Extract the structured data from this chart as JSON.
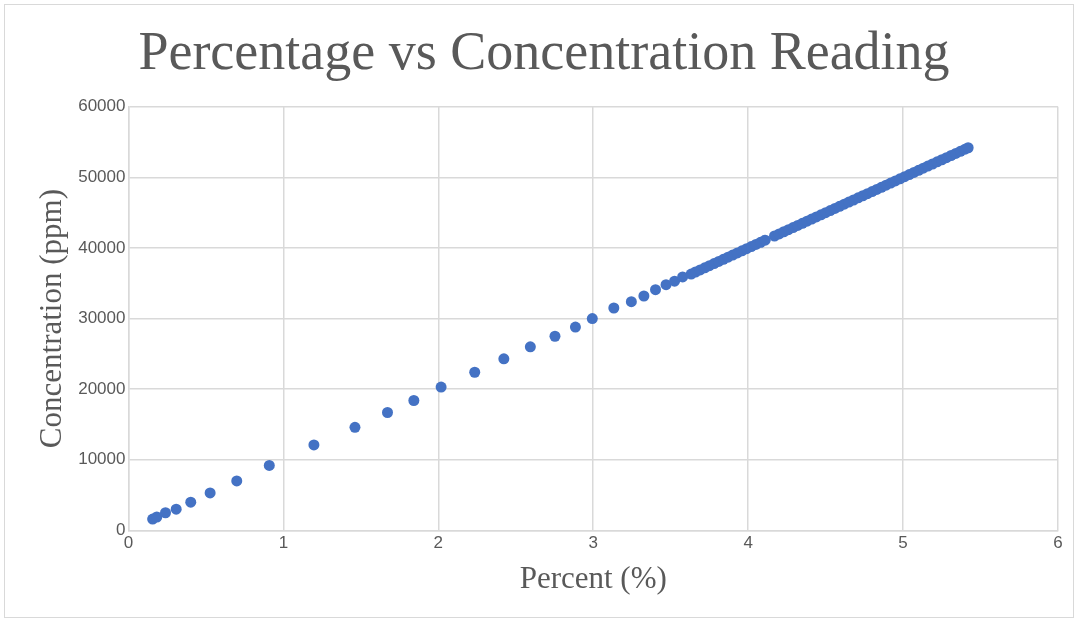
{
  "chart_data": {
    "type": "scatter",
    "title": "Percentage vs Concentration Reading",
    "xlabel": "Percent (%)",
    "ylabel": "Concentration (ppm)",
    "x": [
      0.156,
      0.183,
      0.239,
      0.308,
      0.402,
      0.527,
      0.699,
      0.909,
      1.197,
      1.462,
      1.672,
      1.842,
      2.018,
      2.235,
      2.423,
      2.594,
      2.753,
      2.885,
      2.994,
      3.133,
      3.246,
      3.327,
      3.402,
      3.47,
      3.525,
      3.577,
      3.632,
      3.66,
      3.69,
      3.72,
      3.75,
      3.78,
      3.81,
      3.84,
      3.87,
      3.9,
      3.93,
      3.96,
      3.99,
      4.02,
      4.05,
      4.08,
      4.11,
      4.17,
      4.2,
      4.23,
      4.26,
      4.29,
      4.32,
      4.35,
      4.38,
      4.41,
      4.44,
      4.47,
      4.5,
      4.53,
      4.56,
      4.59,
      4.62,
      4.65,
      4.68,
      4.71,
      4.74,
      4.77,
      4.8,
      4.83,
      4.86,
      4.89,
      4.92,
      4.95,
      4.98,
      5.01,
      5.04,
      5.07,
      5.1,
      5.13,
      5.16,
      5.19,
      5.22,
      5.25,
      5.28,
      5.31,
      5.34,
      5.37,
      5.4,
      5.42
    ],
    "series": [
      {
        "color": "#4472c4",
        "values": [
          1600,
          1900,
          2500,
          3000,
          4000,
          5300,
          7000,
          9200,
          12100,
          14600,
          16700,
          18400,
          20300,
          22400,
          24300,
          26000,
          27500,
          28800,
          30000,
          31500,
          32400,
          33200,
          34100,
          34800,
          35300,
          35900,
          36300,
          36600,
          36900,
          37200,
          37500,
          37800,
          38100,
          38400,
          38700,
          39000,
          39300,
          39600,
          39900,
          40200,
          40500,
          40800,
          41100,
          41700,
          42000,
          42300,
          42600,
          42900,
          43200,
          43500,
          43800,
          44100,
          44400,
          44700,
          45000,
          45300,
          45600,
          45900,
          46200,
          46500,
          46800,
          47100,
          47400,
          47700,
          48000,
          48300,
          48600,
          48900,
          49200,
          49500,
          49800,
          50100,
          50400,
          50700,
          51000,
          51300,
          51600,
          51900,
          52200,
          52500,
          52800,
          53100,
          53400,
          53700,
          54000,
          54200
        ]
      }
    ],
    "xlim": [
      0,
      6
    ],
    "xticks": [
      0,
      1,
      2,
      3,
      4,
      5,
      6
    ],
    "ylim": [
      0,
      60000
    ],
    "yticks": [
      0,
      10000,
      20000,
      30000,
      40000,
      50000,
      60000
    ],
    "grid": true,
    "legend": false,
    "marker": "circle"
  }
}
